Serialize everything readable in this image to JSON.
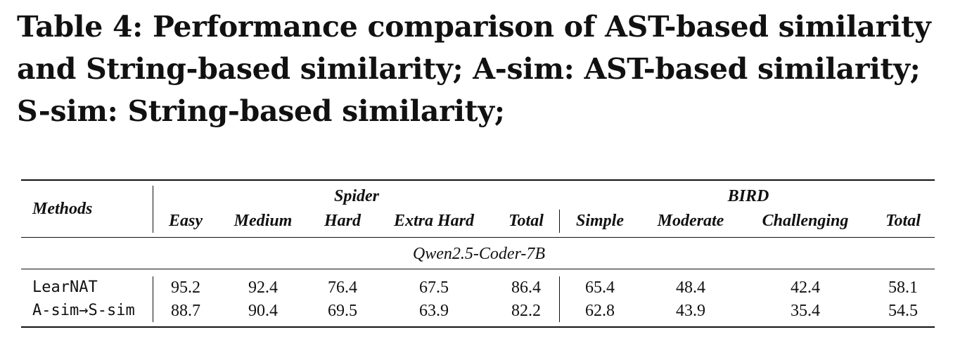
{
  "caption": "Table 4: Performance comparison of AST-based similarity and String-based similarity; A-sim: AST-based similarity; S-sim: String-based similarity;",
  "table": {
    "methods_header": "Methods",
    "group_headers": {
      "spider": "Spider",
      "bird": "BIRD"
    },
    "spider_columns": [
      "Easy",
      "Medium",
      "Hard",
      "Extra Hard",
      "Total"
    ],
    "bird_columns": [
      "Simple",
      "Moderate",
      "Challenging",
      "Total"
    ],
    "section_label": "Qwen2.5-Coder-7B",
    "rows": [
      {
        "method": "LearNAT",
        "spider": [
          "95.2",
          "92.4",
          "76.4",
          "67.5",
          "86.4"
        ],
        "bird": [
          "65.4",
          "48.4",
          "42.4",
          "58.1"
        ]
      },
      {
        "method": "A-sim→S-sim",
        "spider": [
          "88.7",
          "90.4",
          "69.5",
          "63.9",
          "82.2"
        ],
        "bird": [
          "62.8",
          "43.9",
          "35.4",
          "54.5"
        ]
      }
    ]
  }
}
